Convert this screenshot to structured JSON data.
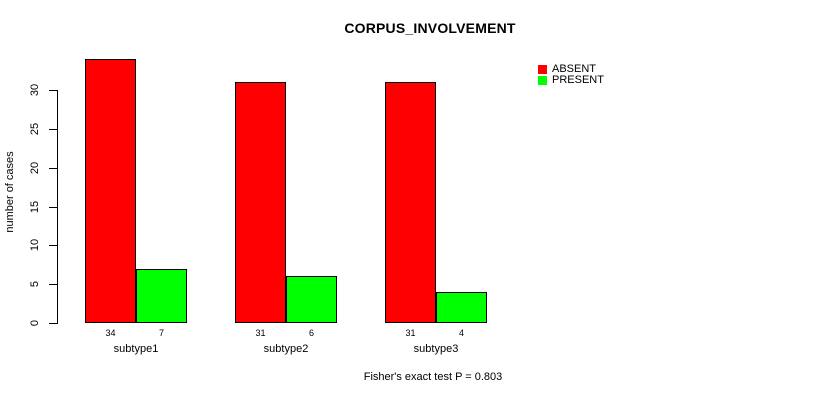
{
  "chart_data": {
    "type": "bar",
    "title": "CORPUS_INVOLVEMENT",
    "ylabel": "number of cases",
    "xlabel": "",
    "categories": [
      "subtype1",
      "subtype2",
      "subtype3"
    ],
    "series": [
      {
        "name": "ABSENT",
        "color": "#FF0000",
        "values": [
          34,
          31,
          31
        ]
      },
      {
        "name": "PRESENT",
        "color": "#00FF00",
        "values": [
          7,
          6,
          4
        ]
      }
    ],
    "bar_value_labels": [
      [
        34,
        7
      ],
      [
        31,
        6
      ],
      [
        31,
        4
      ]
    ],
    "yticks": [
      0,
      5,
      10,
      15,
      20,
      25,
      30
    ],
    "ylim": [
      0,
      34
    ],
    "grid": false,
    "legend_position": "top-right",
    "legend_entries": [
      "ABSENT",
      "PRESENT"
    ],
    "annotation": "Fisher's exact test P = 0.803",
    "axis_color": "#000000",
    "background_color": "#FFFFFF"
  }
}
